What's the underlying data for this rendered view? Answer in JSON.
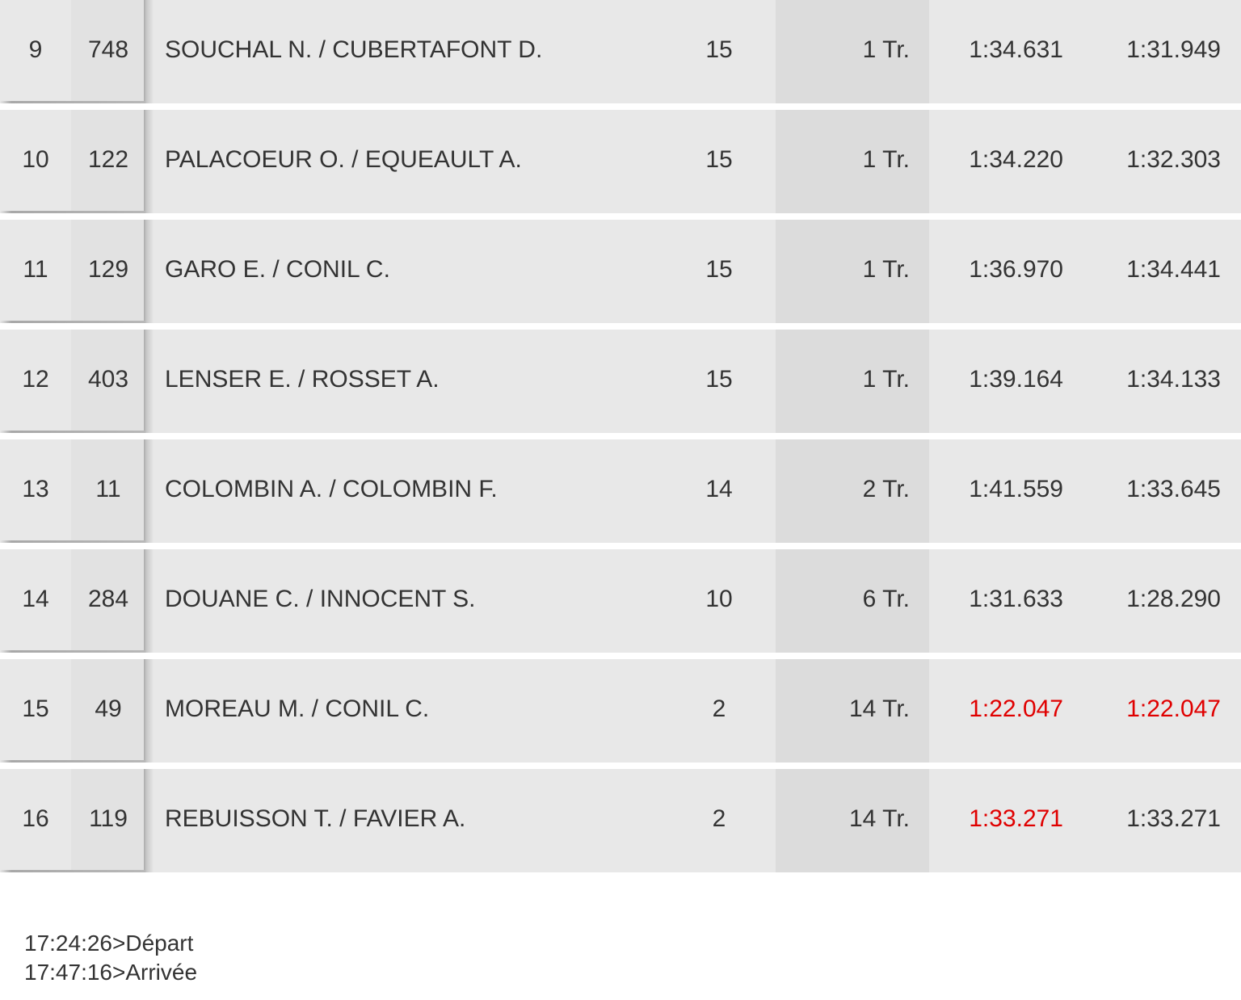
{
  "results": [
    {
      "pos": "9",
      "num": "748",
      "name": "SOUCHAL N. / CUBERTAFONT D.",
      "laps": "15",
      "gap": "1 Tr.",
      "last": "1:34.631",
      "best": "1:31.949",
      "last_red": false,
      "best_red": false
    },
    {
      "pos": "10",
      "num": "122",
      "name": "PALACOEUR O. / EQUEAULT A.",
      "laps": "15",
      "gap": "1 Tr.",
      "last": "1:34.220",
      "best": "1:32.303",
      "last_red": false,
      "best_red": false
    },
    {
      "pos": "11",
      "num": "129",
      "name": "GARO E. / CONIL C.",
      "laps": "15",
      "gap": "1 Tr.",
      "last": "1:36.970",
      "best": "1:34.441",
      "last_red": false,
      "best_red": false
    },
    {
      "pos": "12",
      "num": "403",
      "name": "LENSER E. / ROSSET A.",
      "laps": "15",
      "gap": "1 Tr.",
      "last": "1:39.164",
      "best": "1:34.133",
      "last_red": false,
      "best_red": false
    },
    {
      "pos": "13",
      "num": "11",
      "name": "COLOMBIN A. / COLOMBIN F.",
      "laps": "14",
      "gap": "2 Tr.",
      "last": "1:41.559",
      "best": "1:33.645",
      "last_red": false,
      "best_red": false
    },
    {
      "pos": "14",
      "num": "284",
      "name": "DOUANE C. / INNOCENT S.",
      "laps": "10",
      "gap": "6 Tr.",
      "last": "1:31.633",
      "best": "1:28.290",
      "last_red": false,
      "best_red": false
    },
    {
      "pos": "15",
      "num": "49",
      "name": "MOREAU M. / CONIL C.",
      "laps": "2",
      "gap": "14 Tr.",
      "last": "1:22.047",
      "best": "1:22.047",
      "last_red": true,
      "best_red": true
    },
    {
      "pos": "16",
      "num": "119",
      "name": "REBUISSON T. / FAVIER A.",
      "laps": "2",
      "gap": "14 Tr.",
      "last": "1:33.271",
      "best": "1:33.271",
      "last_red": true,
      "best_red": false
    }
  ],
  "colors": {
    "row_bg": "#e8e8e8",
    "number_bg": "#e2e2e2",
    "gap_bg": "#dcdcdc",
    "text": "#333333",
    "highlight": "#e00000"
  },
  "events": {
    "start": "17:24:26>Départ",
    "finish": "17:47:16>Arrivée"
  }
}
